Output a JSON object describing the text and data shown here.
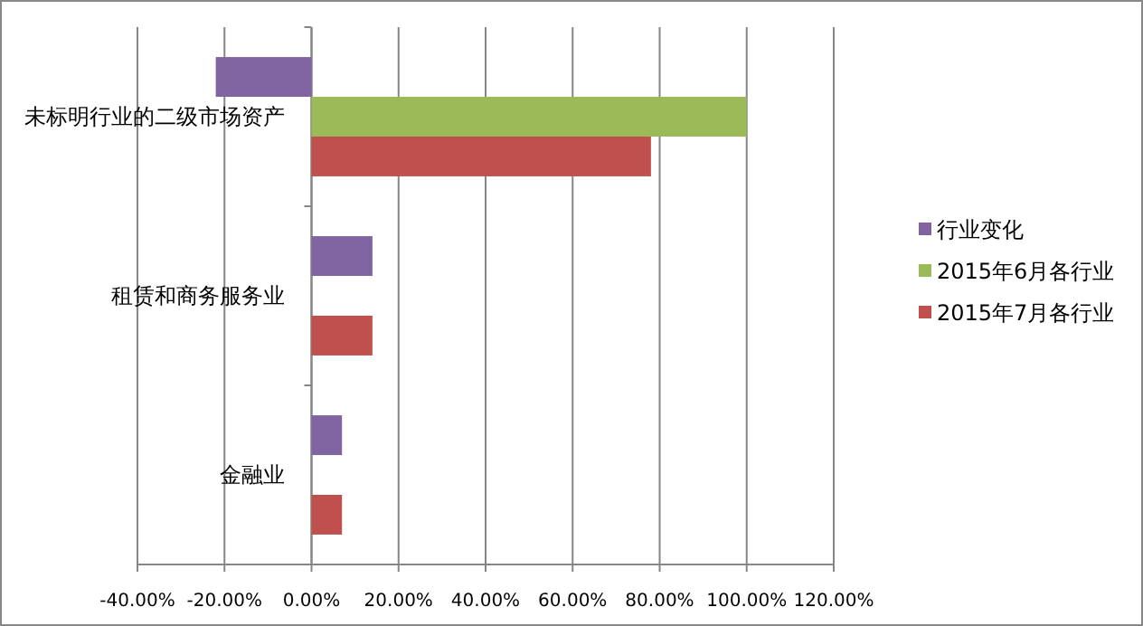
{
  "chart_data": {
    "type": "bar",
    "orientation": "horizontal",
    "categories": [
      "未标明行业的二级市场资产",
      "租赁和商务服务业",
      "金融业"
    ],
    "series": [
      {
        "name": "行业变化",
        "color": "#8064a2",
        "values": [
          -22,
          14,
          7
        ]
      },
      {
        "name": "2015年6月各行业",
        "color": "#9bbb59",
        "values": [
          100,
          null,
          null
        ]
      },
      {
        "name": "2015年7月各行业",
        "color": "#c0504d",
        "values": [
          78,
          14,
          7
        ]
      }
    ],
    "xlim": [
      -40,
      120
    ],
    "xticks": [
      {
        "value": -40,
        "label": "-40.00%"
      },
      {
        "value": -20,
        "label": "-20.00%"
      },
      {
        "value": 0,
        "label": "0.00%"
      },
      {
        "value": 20,
        "label": "20.00%"
      },
      {
        "value": 40,
        "label": "40.00%"
      },
      {
        "value": 60,
        "label": "60.00%"
      },
      {
        "value": 80,
        "label": "80.00%"
      },
      {
        "value": 100,
        "label": "100.00%"
      },
      {
        "value": 120,
        "label": "120.00%"
      }
    ],
    "grid": "x",
    "legend": "right"
  }
}
